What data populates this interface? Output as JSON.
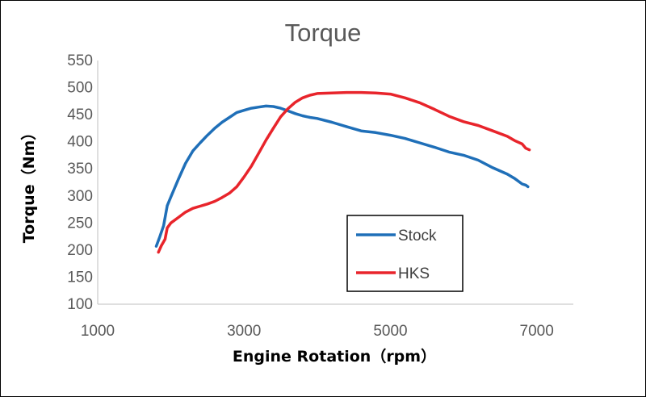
{
  "chart_data": {
    "type": "line",
    "title": "Torque",
    "xlabel": "Engine Rotation（rpm）",
    "ylabel": "Torque（Nm）",
    "xlim": [
      1000,
      7500
    ],
    "ylim": [
      100,
      550
    ],
    "xticks": [
      1000,
      3000,
      5000,
      7000
    ],
    "yticks": [
      100,
      150,
      200,
      250,
      300,
      350,
      400,
      450,
      500,
      550
    ],
    "grid": false,
    "legend_position": "bottom-right",
    "series": [
      {
        "name": "Stock",
        "color": "#1F6FB8",
        "x": [
          1800,
          1850,
          1900,
          1950,
          2000,
          2100,
          2200,
          2300,
          2400,
          2500,
          2600,
          2700,
          2800,
          2900,
          3000,
          3100,
          3200,
          3300,
          3400,
          3500,
          3600,
          3700,
          3800,
          3900,
          4000,
          4200,
          4400,
          4600,
          4800,
          5000,
          5200,
          5400,
          5600,
          5800,
          6000,
          6200,
          6400,
          6600,
          6700,
          6800,
          6850,
          6880
        ],
        "y": [
          207,
          225,
          245,
          282,
          298,
          330,
          360,
          383,
          398,
          412,
          425,
          436,
          445,
          454,
          458,
          462,
          464,
          466,
          465,
          462,
          457,
          452,
          448,
          445,
          443,
          436,
          428,
          420,
          417,
          412,
          406,
          398,
          390,
          381,
          375,
          366,
          352,
          340,
          332,
          322,
          320,
          317
        ]
      },
      {
        "name": "HKS",
        "color": "#E8242B",
        "x": [
          1830,
          1870,
          1920,
          1950,
          2000,
          2100,
          2200,
          2300,
          2400,
          2500,
          2600,
          2700,
          2800,
          2900,
          3000,
          3100,
          3200,
          3300,
          3400,
          3500,
          3600,
          3700,
          3800,
          3900,
          4000,
          4200,
          4400,
          4600,
          4800,
          5000,
          5200,
          5400,
          5600,
          5800,
          6000,
          6200,
          6400,
          6600,
          6700,
          6800,
          6850,
          6900
        ],
        "y": [
          196,
          208,
          220,
          241,
          250,
          260,
          270,
          277,
          281,
          285,
          290,
          297,
          305,
          317,
          335,
          355,
          379,
          403,
          425,
          446,
          461,
          473,
          481,
          486,
          489,
          490,
          491,
          491,
          490,
          488,
          481,
          472,
          460,
          447,
          437,
          430,
          420,
          410,
          402,
          396,
          388,
          385
        ]
      }
    ]
  }
}
